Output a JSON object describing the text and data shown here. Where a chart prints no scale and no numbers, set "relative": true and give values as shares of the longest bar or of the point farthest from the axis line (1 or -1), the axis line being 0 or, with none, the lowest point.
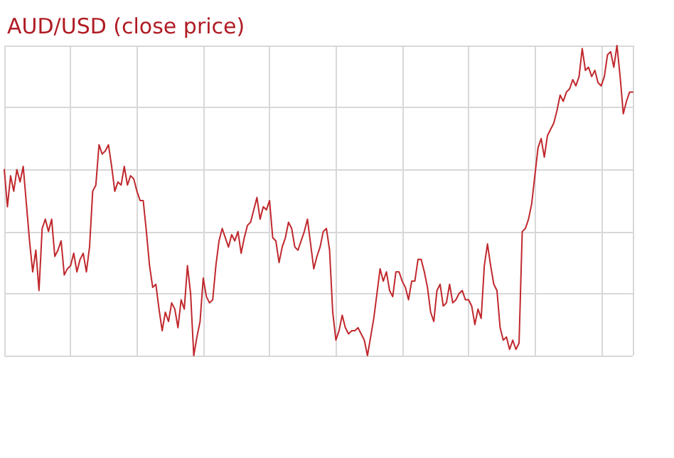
{
  "chart_data": {
    "type": "line",
    "title": "AUD/USD (close price)",
    "relative": true,
    "grid": true,
    "line_style": "solid",
    "series": [
      {
        "color": "#c0282d",
        "values": [
          0.6,
          0.48,
          0.58,
          0.53,
          0.6,
          0.56,
          0.61,
          0.49,
          0.37,
          0.27,
          0.34,
          0.21,
          0.41,
          0.44,
          0.4,
          0.44,
          0.32,
          0.34,
          0.37,
          0.26,
          0.28,
          0.29,
          0.33,
          0.27,
          0.31,
          0.33,
          0.27,
          0.35,
          0.53,
          0.55,
          0.68,
          0.65,
          0.66,
          0.68,
          0.61,
          0.53,
          0.56,
          0.55,
          0.61,
          0.55,
          0.58,
          0.57,
          0.53,
          0.5,
          0.5,
          0.4,
          0.29,
          0.22,
          0.23,
          0.15,
          0.08,
          0.14,
          0.11,
          0.17,
          0.15,
          0.09,
          0.18,
          0.15,
          0.29,
          0.2,
          0,
          0.06,
          0.11,
          0.25,
          0.19,
          0.17,
          0.18,
          0.29,
          0.37,
          0.41,
          0.38,
          0.35,
          0.39,
          0.37,
          0.4,
          0.33,
          0.38,
          0.42,
          0.43,
          0.47,
          0.51,
          0.44,
          0.48,
          0.47,
          0.5,
          0.38,
          0.37,
          0.3,
          0.35,
          0.38,
          0.43,
          0.41,
          0.35,
          0.34,
          0.37,
          0.4,
          0.44,
          0.36,
          0.28,
          0.32,
          0.35,
          0.4,
          0.41,
          0.34,
          0.14,
          0.05,
          0.08,
          0.13,
          0.09,
          0.07,
          0.08,
          0.08,
          0.09,
          0.07,
          0.05,
          0,
          0.06,
          0.12,
          0.2,
          0.28,
          0.24,
          0.27,
          0.21,
          0.19,
          0.27,
          0.27,
          0.24,
          0.22,
          0.18,
          0.24,
          0.24,
          0.31,
          0.31,
          0.27,
          0.22,
          0.14,
          0.11,
          0.21,
          0.23,
          0.16,
          0.17,
          0.23,
          0.17,
          0.18,
          0.2,
          0.21,
          0.18,
          0.18,
          0.16,
          0.1,
          0.15,
          0.12,
          0.29,
          0.36,
          0.29,
          0.23,
          0.21,
          0.09,
          0.05,
          0.06,
          0.02,
          0.05,
          0.02,
          0.04,
          0.4,
          0.41,
          0.44,
          0.49,
          0.58,
          0.67,
          0.7,
          0.64,
          0.71,
          0.73,
          0.75,
          0.79,
          0.84,
          0.82,
          0.85,
          0.86,
          0.89,
          0.87,
          0.9,
          0.99,
          0.92,
          0.93,
          0.9,
          0.92,
          0.88,
          0.87,
          0.9,
          0.97,
          0.98,
          0.93,
          1,
          0.9,
          0.78,
          0.82,
          0.85,
          0.85
        ]
      }
    ]
  }
}
